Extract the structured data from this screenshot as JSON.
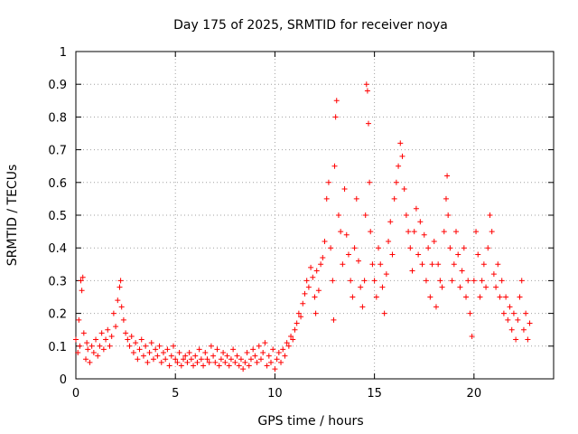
{
  "chart_data": {
    "type": "scatter",
    "title": "Day 175 of 2025, SRMTID for receiver noya",
    "xlabel": "GPS time / hours",
    "ylabel": "SRMTID / TECUs",
    "xlim": [
      0,
      24
    ],
    "ylim": [
      0,
      1
    ],
    "x_ticks": [
      0,
      5,
      10,
      15,
      20
    ],
    "x_tick_labels": [
      "0",
      "5",
      "10",
      "15",
      "20"
    ],
    "y_ticks": [
      0,
      0.1,
      0.2,
      0.3,
      0.4,
      0.5,
      0.6,
      0.7,
      0.8,
      0.9,
      1
    ],
    "y_tick_labels": [
      "0",
      "0.1",
      "0.2",
      "0.3",
      "0.4",
      "0.5",
      "0.6",
      "0.7",
      "0.8",
      "0.9",
      "1"
    ],
    "grid": true,
    "marker": "+",
    "color": "#ff0000",
    "series": [
      {
        "name": "SRMTID",
        "points": [
          [
            0.0,
            0.12
          ],
          [
            0.1,
            0.08
          ],
          [
            0.15,
            0.18
          ],
          [
            0.2,
            0.1
          ],
          [
            0.25,
            0.3
          ],
          [
            0.3,
            0.27
          ],
          [
            0.35,
            0.31
          ],
          [
            0.4,
            0.14
          ],
          [
            0.5,
            0.06
          ],
          [
            0.55,
            0.11
          ],
          [
            0.6,
            0.09
          ],
          [
            0.7,
            0.05
          ],
          [
            0.8,
            0.1
          ],
          [
            0.9,
            0.08
          ],
          [
            1.0,
            0.12
          ],
          [
            1.1,
            0.07
          ],
          [
            1.2,
            0.1
          ],
          [
            1.3,
            0.14
          ],
          [
            1.4,
            0.09
          ],
          [
            1.5,
            0.12
          ],
          [
            1.6,
            0.15
          ],
          [
            1.7,
            0.1
          ],
          [
            1.8,
            0.13
          ],
          [
            1.9,
            0.2
          ],
          [
            2.0,
            0.16
          ],
          [
            2.1,
            0.24
          ],
          [
            2.2,
            0.28
          ],
          [
            2.25,
            0.3
          ],
          [
            2.3,
            0.22
          ],
          [
            2.4,
            0.18
          ],
          [
            2.5,
            0.14
          ],
          [
            2.6,
            0.12
          ],
          [
            2.7,
            0.1
          ],
          [
            2.8,
            0.13
          ],
          [
            2.9,
            0.08
          ],
          [
            3.0,
            0.11
          ],
          [
            3.1,
            0.06
          ],
          [
            3.2,
            0.09
          ],
          [
            3.3,
            0.12
          ],
          [
            3.4,
            0.07
          ],
          [
            3.5,
            0.1
          ],
          [
            3.6,
            0.05
          ],
          [
            3.7,
            0.08
          ],
          [
            3.8,
            0.11
          ],
          [
            3.9,
            0.06
          ],
          [
            4.0,
            0.09
          ],
          [
            4.1,
            0.07
          ],
          [
            4.2,
            0.1
          ],
          [
            4.3,
            0.05
          ],
          [
            4.4,
            0.08
          ],
          [
            4.5,
            0.06
          ],
          [
            4.6,
            0.09
          ],
          [
            4.7,
            0.04
          ],
          [
            4.8,
            0.07
          ],
          [
            4.9,
            0.1
          ],
          [
            5.0,
            0.06
          ],
          [
            5.1,
            0.05
          ],
          [
            5.2,
            0.08
          ],
          [
            5.3,
            0.04
          ],
          [
            5.4,
            0.06
          ],
          [
            5.5,
            0.07
          ],
          [
            5.6,
            0.05
          ],
          [
            5.7,
            0.08
          ],
          [
            5.8,
            0.06
          ],
          [
            5.9,
            0.04
          ],
          [
            6.0,
            0.07
          ],
          [
            6.1,
            0.05
          ],
          [
            6.2,
            0.09
          ],
          [
            6.3,
            0.06
          ],
          [
            6.4,
            0.04
          ],
          [
            6.5,
            0.08
          ],
          [
            6.6,
            0.06
          ],
          [
            6.7,
            0.05
          ],
          [
            6.8,
            0.1
          ],
          [
            6.9,
            0.07
          ],
          [
            7.0,
            0.05
          ],
          [
            7.1,
            0.09
          ],
          [
            7.2,
            0.04
          ],
          [
            7.3,
            0.06
          ],
          [
            7.4,
            0.08
          ],
          [
            7.5,
            0.05
          ],
          [
            7.6,
            0.07
          ],
          [
            7.7,
            0.04
          ],
          [
            7.8,
            0.06
          ],
          [
            7.9,
            0.09
          ],
          [
            8.0,
            0.05
          ],
          [
            8.1,
            0.07
          ],
          [
            8.2,
            0.04
          ],
          [
            8.3,
            0.06
          ],
          [
            8.4,
            0.03
          ],
          [
            8.5,
            0.05
          ],
          [
            8.6,
            0.08
          ],
          [
            8.7,
            0.04
          ],
          [
            8.8,
            0.06
          ],
          [
            8.9,
            0.09
          ],
          [
            9.0,
            0.07
          ],
          [
            9.1,
            0.05
          ],
          [
            9.2,
            0.1
          ],
          [
            9.3,
            0.06
          ],
          [
            9.4,
            0.08
          ],
          [
            9.5,
            0.11
          ],
          [
            9.6,
            0.04
          ],
          [
            9.7,
            0.07
          ],
          [
            9.8,
            0.05
          ],
          [
            9.9,
            0.09
          ],
          [
            10.0,
            0.03
          ],
          [
            10.1,
            0.06
          ],
          [
            10.2,
            0.08
          ],
          [
            10.3,
            0.05
          ],
          [
            10.4,
            0.09
          ],
          [
            10.5,
            0.07
          ],
          [
            10.6,
            0.11
          ],
          [
            10.7,
            0.1
          ],
          [
            10.8,
            0.13
          ],
          [
            10.9,
            0.12
          ],
          [
            11.0,
            0.15
          ],
          [
            11.1,
            0.17
          ],
          [
            11.2,
            0.2
          ],
          [
            11.3,
            0.19
          ],
          [
            11.4,
            0.23
          ],
          [
            11.5,
            0.26
          ],
          [
            11.6,
            0.3
          ],
          [
            11.7,
            0.28
          ],
          [
            11.8,
            0.34
          ],
          [
            11.9,
            0.31
          ],
          [
            12.0,
            0.25
          ],
          [
            12.05,
            0.2
          ],
          [
            12.1,
            0.33
          ],
          [
            12.2,
            0.27
          ],
          [
            12.3,
            0.35
          ],
          [
            12.4,
            0.37
          ],
          [
            12.5,
            0.42
          ],
          [
            12.6,
            0.55
          ],
          [
            12.7,
            0.6
          ],
          [
            12.8,
            0.4
          ],
          [
            12.9,
            0.3
          ],
          [
            12.95,
            0.18
          ],
          [
            13.0,
            0.65
          ],
          [
            13.05,
            0.8
          ],
          [
            13.1,
            0.85
          ],
          [
            13.2,
            0.5
          ],
          [
            13.3,
            0.45
          ],
          [
            13.4,
            0.35
          ],
          [
            13.5,
            0.58
          ],
          [
            13.6,
            0.44
          ],
          [
            13.7,
            0.38
          ],
          [
            13.8,
            0.3
          ],
          [
            13.9,
            0.25
          ],
          [
            14.0,
            0.4
          ],
          [
            14.1,
            0.55
          ],
          [
            14.2,
            0.36
          ],
          [
            14.3,
            0.28
          ],
          [
            14.4,
            0.22
          ],
          [
            14.5,
            0.3
          ],
          [
            14.55,
            0.5
          ],
          [
            14.6,
            0.9
          ],
          [
            14.65,
            0.88
          ],
          [
            14.7,
            0.78
          ],
          [
            14.75,
            0.6
          ],
          [
            14.8,
            0.45
          ],
          [
            14.9,
            0.35
          ],
          [
            15.0,
            0.3
          ],
          [
            15.1,
            0.25
          ],
          [
            15.2,
            0.4
          ],
          [
            15.3,
            0.35
          ],
          [
            15.4,
            0.28
          ],
          [
            15.5,
            0.2
          ],
          [
            15.6,
            0.32
          ],
          [
            15.7,
            0.42
          ],
          [
            15.8,
            0.48
          ],
          [
            15.9,
            0.38
          ],
          [
            16.0,
            0.55
          ],
          [
            16.1,
            0.6
          ],
          [
            16.2,
            0.65
          ],
          [
            16.3,
            0.72
          ],
          [
            16.4,
            0.68
          ],
          [
            16.5,
            0.58
          ],
          [
            16.6,
            0.5
          ],
          [
            16.7,
            0.45
          ],
          [
            16.8,
            0.4
          ],
          [
            16.9,
            0.33
          ],
          [
            17.0,
            0.45
          ],
          [
            17.1,
            0.52
          ],
          [
            17.2,
            0.38
          ],
          [
            17.3,
            0.48
          ],
          [
            17.4,
            0.35
          ],
          [
            17.5,
            0.44
          ],
          [
            17.6,
            0.3
          ],
          [
            17.7,
            0.4
          ],
          [
            17.8,
            0.25
          ],
          [
            17.9,
            0.35
          ],
          [
            18.0,
            0.42
          ],
          [
            18.1,
            0.22
          ],
          [
            18.2,
            0.35
          ],
          [
            18.3,
            0.3
          ],
          [
            18.4,
            0.28
          ],
          [
            18.5,
            0.45
          ],
          [
            18.6,
            0.55
          ],
          [
            18.65,
            0.62
          ],
          [
            18.7,
            0.5
          ],
          [
            18.8,
            0.4
          ],
          [
            18.9,
            0.3
          ],
          [
            19.0,
            0.35
          ],
          [
            19.1,
            0.45
          ],
          [
            19.2,
            0.38
          ],
          [
            19.3,
            0.28
          ],
          [
            19.4,
            0.33
          ],
          [
            19.5,
            0.4
          ],
          [
            19.6,
            0.25
          ],
          [
            19.7,
            0.3
          ],
          [
            19.8,
            0.2
          ],
          [
            19.9,
            0.13
          ],
          [
            20.0,
            0.3
          ],
          [
            20.1,
            0.45
          ],
          [
            20.2,
            0.38
          ],
          [
            20.3,
            0.25
          ],
          [
            20.4,
            0.3
          ],
          [
            20.5,
            0.35
          ],
          [
            20.6,
            0.28
          ],
          [
            20.7,
            0.4
          ],
          [
            20.8,
            0.5
          ],
          [
            20.9,
            0.45
          ],
          [
            21.0,
            0.32
          ],
          [
            21.1,
            0.28
          ],
          [
            21.2,
            0.35
          ],
          [
            21.3,
            0.25
          ],
          [
            21.4,
            0.3
          ],
          [
            21.5,
            0.2
          ],
          [
            21.6,
            0.25
          ],
          [
            21.7,
            0.18
          ],
          [
            21.8,
            0.22
          ],
          [
            21.9,
            0.15
          ],
          [
            22.0,
            0.2
          ],
          [
            22.1,
            0.12
          ],
          [
            22.2,
            0.18
          ],
          [
            22.3,
            0.25
          ],
          [
            22.4,
            0.3
          ],
          [
            22.5,
            0.15
          ],
          [
            22.6,
            0.2
          ],
          [
            22.7,
            0.12
          ],
          [
            22.8,
            0.17
          ]
        ]
      }
    ]
  }
}
